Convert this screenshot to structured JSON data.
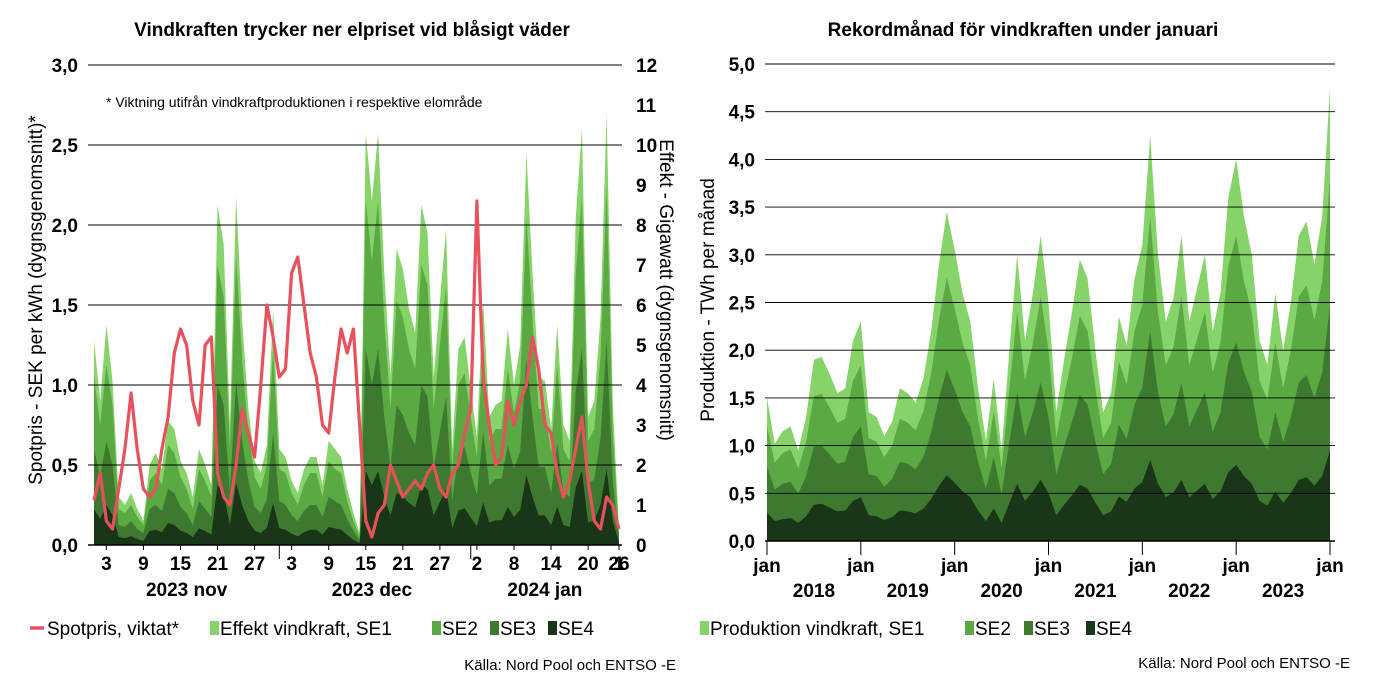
{
  "charts": [
    {
      "title": "Vindkraften trycker ner elpriset vid blåsigt väder",
      "ylabel_left": "Spotpris - SEK per kWh (dygnsgenomsnitt)*",
      "ylabel_right": "Effekt - Gigawatt (dygnsgenomsnitt)",
      "note": "* Viktning utifrån vindkraftproduktionen i respektive elområde",
      "y_ticks_left": [
        "0,0",
        "0,5",
        "1,0",
        "1,5",
        "2,0",
        "2,5",
        "3,0"
      ],
      "y_ticks_right": [
        "0",
        "1",
        "2",
        "3",
        "4",
        "5",
        "6",
        "7",
        "8",
        "9",
        "10",
        "11",
        "12"
      ],
      "x_ticks": [
        "3",
        "9",
        "15",
        "21",
        "27",
        "3",
        "9",
        "15",
        "21",
        "27",
        "2",
        "8",
        "14",
        "20",
        "26",
        "1"
      ],
      "month_labels": [
        "2023 nov",
        "2023 dec",
        "2024 jan"
      ],
      "legend": [
        {
          "label": "Spotpris, viktat*",
          "type": "line"
        },
        {
          "label": "Effekt vindkraft, SE1",
          "type": "area"
        },
        {
          "label": "SE2",
          "type": "area"
        },
        {
          "label": "SE3",
          "type": "area"
        },
        {
          "label": "SE4",
          "type": "area"
        }
      ],
      "source": "Källa: Nord Pool och ENTSO -E"
    },
    {
      "title": "Rekordmånad för vindkraften under januari",
      "ylabel_left": "Produktion - TWh per månad",
      "y_ticks_left": [
        "0,0",
        "0,5",
        "1,0",
        "1,5",
        "2,0",
        "2,5",
        "3,0",
        "3,5",
        "4,0",
        "4,5",
        "5,0"
      ],
      "x_ticks": [
        "jan",
        "jan",
        "jan",
        "jan",
        "jan",
        "jan",
        "jan"
      ],
      "year_labels": [
        "2018",
        "2019",
        "2020",
        "2021",
        "2022",
        "2023"
      ],
      "legend": [
        {
          "label": "Produktion vindkraft, SE1",
          "type": "area"
        },
        {
          "label": "SE2",
          "type": "area"
        },
        {
          "label": "SE3",
          "type": "area"
        },
        {
          "label": "SE4",
          "type": "area"
        }
      ],
      "source": "Källa: Nord Pool och ENTSO -E"
    }
  ],
  "colors": {
    "SE1": "#86d36a",
    "SE2": "#5aa943",
    "SE3": "#3d7a2f",
    "SE4": "#1a3619",
    "spot": "#e8505b",
    "grid": "#000000"
  },
  "chart_data": [
    {
      "type": "area",
      "title": "Vindkraften trycker ner elpriset vid blåsigt väder",
      "x_unit": "day",
      "x_start": "2023-11-01",
      "spot_price_sek_per_kwh": [
        0.28,
        0.45,
        0.15,
        0.1,
        0.35,
        0.6,
        0.95,
        0.6,
        0.35,
        0.3,
        0.35,
        0.6,
        0.8,
        1.2,
        1.35,
        1.25,
        0.9,
        0.75,
        1.25,
        1.3,
        0.45,
        0.3,
        0.25,
        0.5,
        0.85,
        0.7,
        0.55,
        1.0,
        1.5,
        1.3,
        1.05,
        1.1,
        1.7,
        1.8,
        1.5,
        1.2,
        1.05,
        0.75,
        0.7,
        1.05,
        1.35,
        1.2,
        1.35,
        0.75,
        0.15,
        0.05,
        0.2,
        0.25,
        0.5,
        0.4,
        0.3,
        0.35,
        0.4,
        0.35,
        0.45,
        0.5,
        0.35,
        0.3,
        0.45,
        0.5,
        0.7,
        0.85,
        2.15,
        1.05,
        0.75,
        0.5,
        0.55,
        0.9,
        0.75,
        0.9,
        1.0,
        1.3,
        1.1,
        0.75,
        0.7,
        0.45,
        0.3,
        0.4,
        0.6,
        0.8,
        0.4,
        0.15,
        0.1,
        0.3,
        0.25,
        0.1
      ],
      "effect_gw": {
        "SE1": [
          5.1,
          3.6,
          5.5,
          4.1,
          1.2,
          1.0,
          1.3,
          0.9,
          0.6,
          2.0,
          2.3,
          1.9,
          3.1,
          2.9,
          2.1,
          1.8,
          1.2,
          2.4,
          2.0,
          1.5,
          8.5,
          7.5,
          3.0,
          8.7,
          5.6,
          3.4,
          2.1,
          1.8,
          2.5,
          5.9,
          2.4,
          2.2,
          1.6,
          1.3,
          1.9,
          2.2,
          2.2,
          1.5,
          2.6,
          2.4,
          2.2,
          1.4,
          0.8,
          0.3,
          10.3,
          8.6,
          10.3,
          6.8,
          4.2,
          7.4,
          6.9,
          5.9,
          5.3,
          8.5,
          7.8,
          4.2,
          6.1,
          7.9,
          2.4,
          4.9,
          5.2,
          3.9,
          2.7,
          6.1,
          3.2,
          3.5,
          3.6,
          5.4,
          4.0,
          5.0,
          9.8,
          6.8,
          4.2,
          4.1,
          2.9,
          5.5,
          3.0,
          2.6,
          8.2,
          10.4,
          3.2,
          3.6,
          5.7,
          10.8,
          3.5,
          0.4
        ],
        "SE2": [
          4.2,
          3.0,
          4.5,
          3.5,
          0.9,
          0.8,
          1.0,
          0.7,
          0.5,
          1.6,
          1.8,
          1.5,
          2.5,
          2.3,
          1.7,
          1.4,
          0.9,
          1.9,
          1.6,
          1.2,
          7.0,
          6.2,
          2.4,
          7.2,
          4.6,
          2.8,
          1.7,
          1.4,
          2.0,
          4.9,
          1.9,
          1.8,
          1.3,
          1.0,
          1.5,
          1.8,
          1.8,
          1.2,
          2.1,
          1.9,
          1.8,
          1.1,
          0.6,
          0.2,
          8.6,
          7.1,
          8.6,
          5.6,
          3.4,
          6.1,
          5.7,
          4.9,
          4.4,
          7.0,
          6.5,
          3.4,
          5.0,
          6.5,
          1.9,
          4.0,
          4.3,
          3.2,
          2.2,
          5.0,
          2.6,
          2.9,
          2.9,
          4.4,
          3.3,
          4.1,
          8.2,
          5.6,
          3.4,
          3.4,
          2.3,
          4.5,
          2.4,
          2.1,
          6.8,
          8.7,
          2.6,
          2.9,
          4.7,
          9.0,
          2.8,
          0.3
        ],
        "SE3": [
          2.4,
          1.7,
          2.6,
          2.0,
          0.5,
          0.45,
          0.6,
          0.4,
          0.3,
          0.9,
          1.0,
          0.85,
          1.4,
          1.3,
          0.95,
          0.8,
          0.5,
          1.1,
          0.9,
          0.7,
          4.0,
          3.5,
          1.35,
          4.1,
          2.6,
          1.6,
          0.95,
          0.8,
          1.15,
          2.8,
          1.1,
          1.0,
          0.75,
          0.6,
          0.85,
          1.0,
          1.0,
          0.7,
          1.2,
          1.1,
          1.0,
          0.65,
          0.35,
          0.12,
          4.9,
          4.0,
          4.9,
          3.2,
          1.95,
          3.5,
          3.25,
          2.8,
          2.5,
          4.0,
          3.7,
          1.95,
          2.85,
          3.7,
          1.1,
          2.3,
          2.45,
          1.8,
          1.25,
          2.85,
          1.5,
          1.65,
          1.65,
          2.5,
          1.9,
          2.35,
          4.65,
          3.2,
          1.95,
          1.95,
          1.3,
          2.55,
          1.35,
          1.2,
          3.85,
          4.9,
          1.5,
          1.65,
          2.65,
          5.1,
          1.6,
          0.17
        ],
        "SE4": [
          0.9,
          0.65,
          1.0,
          0.75,
          0.2,
          0.17,
          0.22,
          0.15,
          0.1,
          0.35,
          0.38,
          0.32,
          0.55,
          0.5,
          0.36,
          0.3,
          0.2,
          0.42,
          0.35,
          0.26,
          1.5,
          1.3,
          0.5,
          1.55,
          1.0,
          0.6,
          0.36,
          0.3,
          0.43,
          1.05,
          0.42,
          0.38,
          0.28,
          0.22,
          0.32,
          0.38,
          0.38,
          0.26,
          0.45,
          0.42,
          0.38,
          0.25,
          0.13,
          0.05,
          1.85,
          1.5,
          1.85,
          1.2,
          0.74,
          1.3,
          1.22,
          1.05,
          0.94,
          1.5,
          1.4,
          0.74,
          1.07,
          1.4,
          0.42,
          0.86,
          0.92,
          0.68,
          0.47,
          1.07,
          0.56,
          0.62,
          0.62,
          0.95,
          0.7,
          0.88,
          1.75,
          1.2,
          0.74,
          0.74,
          0.5,
          0.96,
          0.5,
          0.45,
          1.45,
          1.85,
          0.56,
          0.62,
          1.0,
          1.9,
          0.6,
          0.06
        ]
      },
      "ylim_left": [
        0,
        3
      ],
      "ylim_right": [
        0,
        12
      ],
      "grid": true,
      "legend_position": "bottom"
    },
    {
      "type": "area",
      "title": "Rekordmånad för vindkraften under januari",
      "x_unit": "month",
      "x_start": "2018-01",
      "production_twh": {
        "SE1": [
          1.5,
          1.02,
          1.15,
          1.2,
          0.95,
          1.3,
          1.9,
          1.93,
          1.75,
          1.55,
          1.6,
          2.1,
          2.3,
          1.35,
          1.3,
          1.1,
          1.25,
          1.6,
          1.55,
          1.45,
          1.7,
          2.2,
          2.9,
          3.45,
          3.05,
          2.6,
          2.3,
          1.6,
          1.05,
          1.7,
          0.95,
          2.0,
          3.0,
          2.1,
          2.6,
          3.2,
          2.5,
          1.35,
          1.9,
          2.4,
          2.95,
          2.75,
          2.0,
          1.35,
          1.55,
          2.35,
          2.05,
          2.75,
          3.1,
          4.25,
          3.0,
          2.3,
          2.55,
          3.2,
          2.3,
          2.65,
          3.0,
          2.2,
          2.6,
          3.6,
          4.0,
          3.4,
          3.0,
          2.1,
          1.85,
          2.6,
          2.0,
          2.5,
          3.2,
          3.35,
          2.9,
          3.4,
          4.75
        ],
        "SE2": [
          1.2,
          0.82,
          0.92,
          0.96,
          0.76,
          1.04,
          1.52,
          1.54,
          1.4,
          1.24,
          1.28,
          1.68,
          1.84,
          1.08,
          1.04,
          0.88,
          1.0,
          1.28,
          1.24,
          1.16,
          1.36,
          1.76,
          2.32,
          2.76,
          2.44,
          2.08,
          1.84,
          1.28,
          0.84,
          1.36,
          0.76,
          1.6,
          2.4,
          1.68,
          2.08,
          2.56,
          2.0,
          1.08,
          1.52,
          1.92,
          2.36,
          2.2,
          1.6,
          1.08,
          1.24,
          1.88,
          1.64,
          2.2,
          2.48,
          3.4,
          2.4,
          1.84,
          2.04,
          2.56,
          1.84,
          2.12,
          2.4,
          1.76,
          2.08,
          2.88,
          3.2,
          2.72,
          2.4,
          1.68,
          1.48,
          2.08,
          1.6,
          2.0,
          2.56,
          2.68,
          2.32,
          2.72,
          3.8
        ],
        "SE3": [
          0.78,
          0.54,
          0.6,
          0.62,
          0.5,
          0.68,
          0.99,
          1.0,
          0.91,
          0.81,
          0.83,
          1.09,
          1.2,
          0.7,
          0.68,
          0.57,
          0.65,
          0.83,
          0.81,
          0.75,
          0.88,
          1.14,
          1.5,
          1.79,
          1.59,
          1.35,
          1.2,
          0.83,
          0.55,
          0.88,
          0.49,
          1.04,
          1.56,
          1.09,
          1.35,
          1.66,
          1.3,
          0.7,
          0.99,
          1.25,
          1.53,
          1.43,
          1.04,
          0.7,
          0.81,
          1.22,
          1.07,
          1.43,
          1.61,
          2.2,
          1.56,
          1.2,
          1.33,
          1.66,
          1.2,
          1.38,
          1.56,
          1.14,
          1.35,
          1.87,
          2.08,
          1.77,
          1.56,
          1.09,
          0.96,
          1.35,
          1.04,
          1.3,
          1.66,
          1.74,
          1.5,
          1.77,
          2.47
        ],
        "SE4": [
          0.3,
          0.21,
          0.23,
          0.24,
          0.19,
          0.26,
          0.38,
          0.39,
          0.35,
          0.31,
          0.32,
          0.42,
          0.46,
          0.27,
          0.26,
          0.22,
          0.25,
          0.32,
          0.31,
          0.29,
          0.34,
          0.44,
          0.58,
          0.69,
          0.61,
          0.52,
          0.46,
          0.32,
          0.21,
          0.34,
          0.19,
          0.4,
          0.6,
          0.42,
          0.52,
          0.64,
          0.5,
          0.27,
          0.38,
          0.48,
          0.59,
          0.55,
          0.4,
          0.27,
          0.31,
          0.47,
          0.41,
          0.55,
          0.62,
          0.85,
          0.6,
          0.46,
          0.51,
          0.64,
          0.46,
          0.53,
          0.6,
          0.44,
          0.52,
          0.72,
          0.8,
          0.68,
          0.6,
          0.42,
          0.37,
          0.52,
          0.4,
          0.5,
          0.64,
          0.67,
          0.58,
          0.68,
          0.95
        ]
      },
      "ylim": [
        0,
        5
      ],
      "grid": true,
      "legend_position": "bottom"
    }
  ]
}
